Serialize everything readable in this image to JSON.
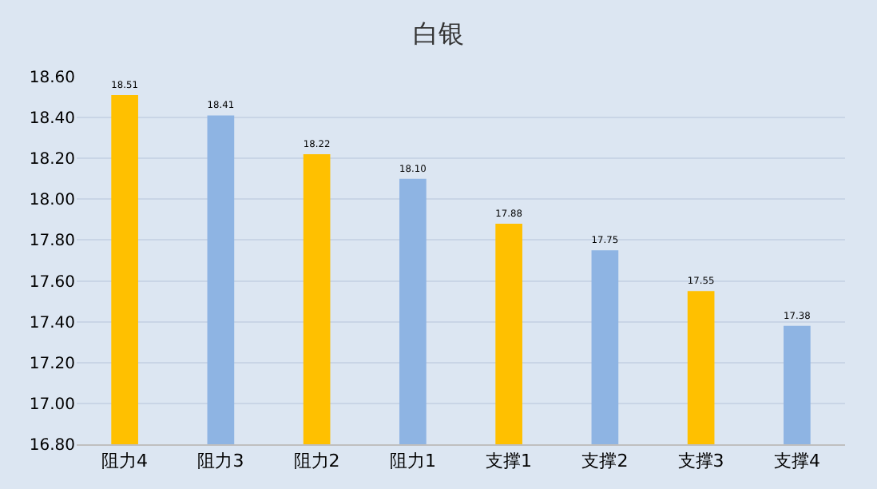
{
  "chart_data": {
    "type": "bar",
    "title": "白银",
    "categories": [
      "阻力4",
      "阻力3",
      "阻力2",
      "阻力1",
      "支撑1",
      "支撑2",
      "支撑3",
      "支撑4"
    ],
    "values": [
      18.51,
      18.41,
      18.22,
      18.1,
      17.88,
      17.75,
      17.55,
      17.38
    ],
    "colors": [
      "#ffc000",
      "#8eb4e3",
      "#ffc000",
      "#8eb4e3",
      "#ffc000",
      "#8eb4e3",
      "#ffc000",
      "#8eb4e3"
    ],
    "value_labels": [
      "18.51",
      "18.41",
      "18.22",
      "18.10",
      "17.88",
      "17.75",
      "17.55",
      "17.38"
    ],
    "ylim": [
      16.8,
      18.6
    ],
    "yticks": [
      {
        "value": 16.8,
        "label": "16.80"
      },
      {
        "value": 17.0,
        "label": "17.00"
      },
      {
        "value": 17.2,
        "label": "17.20"
      },
      {
        "value": 17.4,
        "label": "17.40"
      },
      {
        "value": 17.6,
        "label": "17.60"
      },
      {
        "value": 17.8,
        "label": "17.80"
      },
      {
        "value": 18.0,
        "label": "18.00"
      },
      {
        "value": 18.2,
        "label": "18.20"
      },
      {
        "value": 18.4,
        "label": "18.40"
      },
      {
        "value": 18.6,
        "label": "18.60"
      }
    ],
    "grid": "y"
  }
}
